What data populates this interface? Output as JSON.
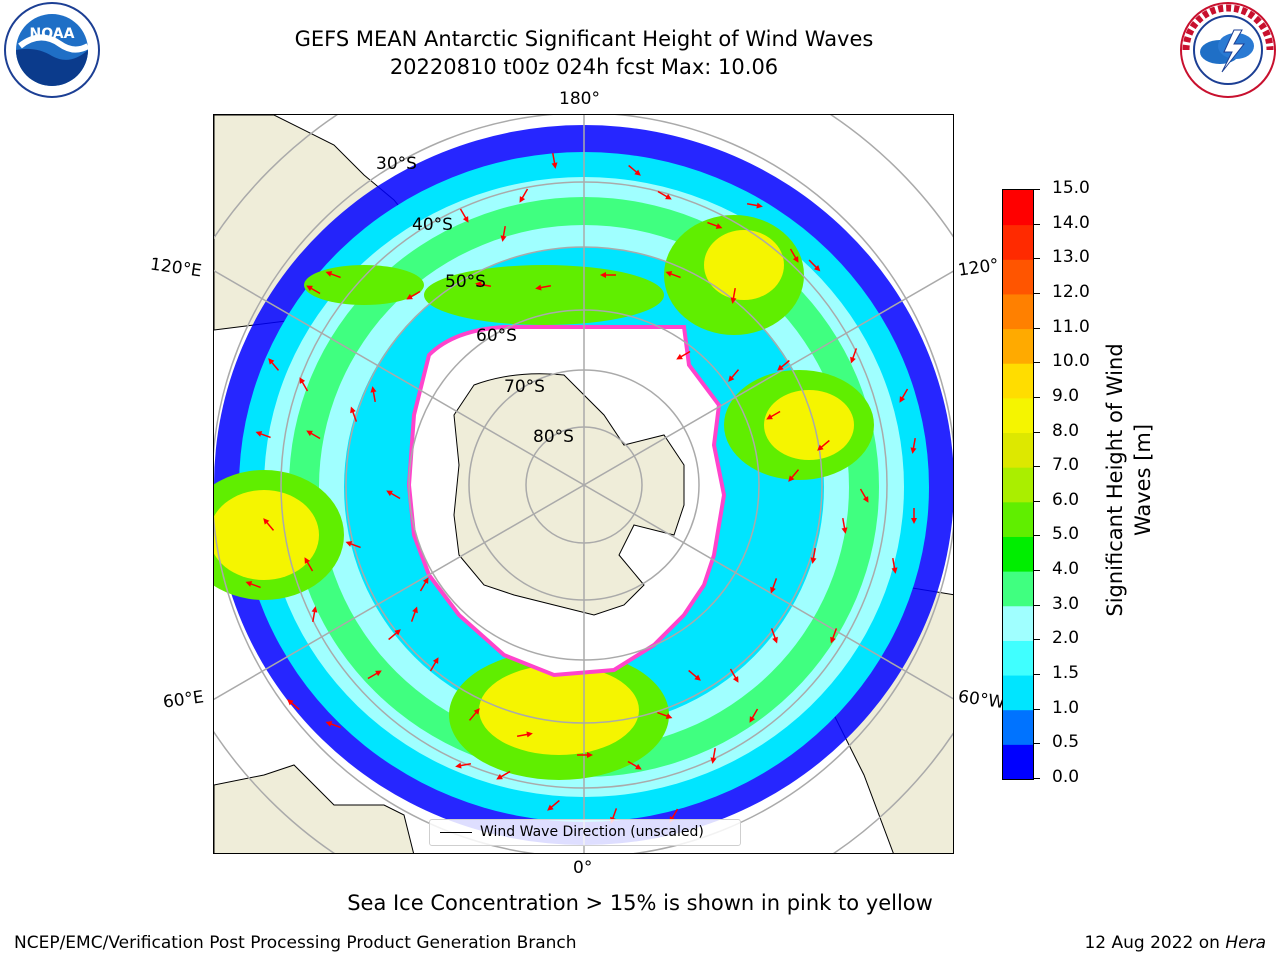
{
  "title": {
    "line1": "GEFS MEAN Antarctic Significant Height of Wind Waves",
    "line2": "20220810 t00z 024h fcst   Max: 10.06"
  },
  "logos": {
    "left": "noaa-logo",
    "right": "nws-logo"
  },
  "map": {
    "projection": "south-polar-stereographic",
    "longitude_labels": {
      "top": "180°",
      "bottom": "0°",
      "left_upper": "120°E",
      "left_lower": "60°E",
      "right_upper": "120°",
      "right_lower": "60°W"
    },
    "latitude_labels": [
      "30°S",
      "40°S",
      "50°S",
      "60°S",
      "70°S",
      "80°S"
    ],
    "legend": {
      "label": "Wind Wave Direction (unscaled)"
    }
  },
  "colorbar": {
    "label": "Significant Height of Wind Waves [m]",
    "label_lines": [
      "Significant Height of Wind",
      "Waves [m]"
    ],
    "ticks": [
      "0.0",
      "0.5",
      "1.0",
      "1.5",
      "2.0",
      "3.0",
      "4.0",
      "5.0",
      "6.0",
      "7.0",
      "8.0",
      "9.0",
      "10.0",
      "11.0",
      "12.0",
      "13.0",
      "14.0",
      "15.0"
    ],
    "colors": [
      "#0000ff",
      "#0073ff",
      "#00e5ff",
      "#40ffff",
      "#a0ffff",
      "#40ff80",
      "#00ee00",
      "#60ee00",
      "#aaee00",
      "#dde800",
      "#f5f500",
      "#ffdd00",
      "#ffaa00",
      "#ff8000",
      "#ff5500",
      "#ff2a00",
      "#ff0000"
    ]
  },
  "footer": {
    "ice_note": "Sea Ice Concentration > 15% is shown in pink to yellow",
    "credit": "NCEP/EMC/Verification Post Processing Product Generation Branch",
    "date": "12 Aug 2022 on",
    "machine": "Hera"
  }
}
